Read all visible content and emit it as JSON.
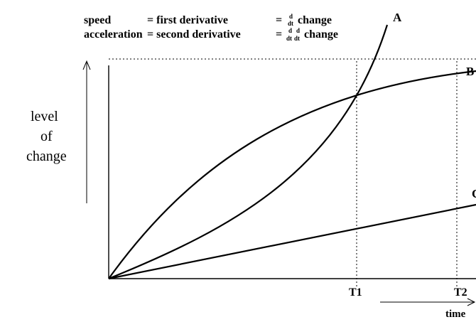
{
  "legend": {
    "row1": {
      "term": "speed",
      "equals1": "= first derivative",
      "equals2": "=",
      "frac_num": "d",
      "frac_den": "dt",
      "word": "change"
    },
    "row2": {
      "term": "acceleration",
      "equals1": "= second derivative",
      "equals2": "=",
      "frac1_num": "d",
      "frac1_den": "dt",
      "frac2_num": "d",
      "frac2_den": "dt",
      "word": "change"
    }
  },
  "y_axis_label": [
    "level",
    "of",
    "change"
  ],
  "x_axis_label": "time",
  "time_markers": [
    "T1",
    "T2"
  ],
  "curves": [
    {
      "label": "A",
      "shape": "accelerating"
    },
    {
      "label": "B",
      "shape": "decelerating"
    },
    {
      "label": "C",
      "shape": "linear"
    }
  ]
}
